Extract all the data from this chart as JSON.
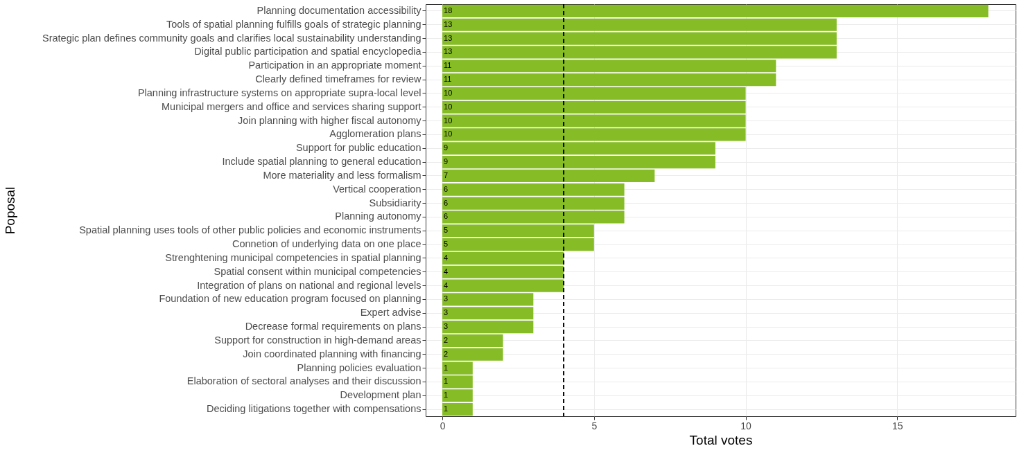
{
  "chart_data": {
    "type": "bar",
    "orientation": "horizontal",
    "xlabel": "Total votes",
    "ylabel": "Poposal",
    "categories": [
      "Planning documentation accessibility",
      "Tools of spatial planning fulfills goals of strategic planning",
      "Srategic plan defines community goals and clarifies local sustainability understanding",
      "Digital public participation and spatial encyclopedia",
      "Participation in an appropriate moment",
      "Clearly defined timeframes for review",
      "Planning infrastructure systems on appropriate supra-local level",
      "Municipal mergers and office and services sharing support",
      "Join planning with higher fiscal autonomy",
      "Agglomeration plans",
      "Support for public education",
      "Include spatial planning to general education",
      "More materiality and less formalism",
      "Vertical cooperation",
      "Subsidiarity",
      "Planning autonomy",
      "Spatial planning uses tools of other public policies and economic instruments",
      "Connetion of underlying data on one place",
      "Strenghtening municipal competencies in spatial planning",
      "Spatial consent within municipal competencies",
      "Integration of plans on national and regional levels",
      "Foundation of new education program focused on planning",
      "Expert advise",
      "Decrease formal requirements on plans",
      "Support for construction in high-demand areas",
      "Join coordinated planning with financing",
      "Planning policies evaluation",
      "Elaboration of sectoral analyses and their discussion",
      "Development plan",
      "Deciding litigations together with compensations"
    ],
    "values": [
      18,
      13,
      13,
      13,
      11,
      11,
      10,
      10,
      10,
      10,
      9,
      9,
      7,
      6,
      6,
      6,
      5,
      5,
      4,
      4,
      4,
      3,
      3,
      3,
      2,
      2,
      1,
      1,
      1,
      1
    ],
    "color": "#86bc25",
    "data_labels": true,
    "xlim": [
      -0.55,
      18.9
    ],
    "xticks": [
      0,
      5,
      10,
      15
    ],
    "grid": true,
    "ref_lines": [
      {
        "axis": "x",
        "value": 4,
        "color": "#000000",
        "line_style": "dashed"
      }
    ]
  }
}
